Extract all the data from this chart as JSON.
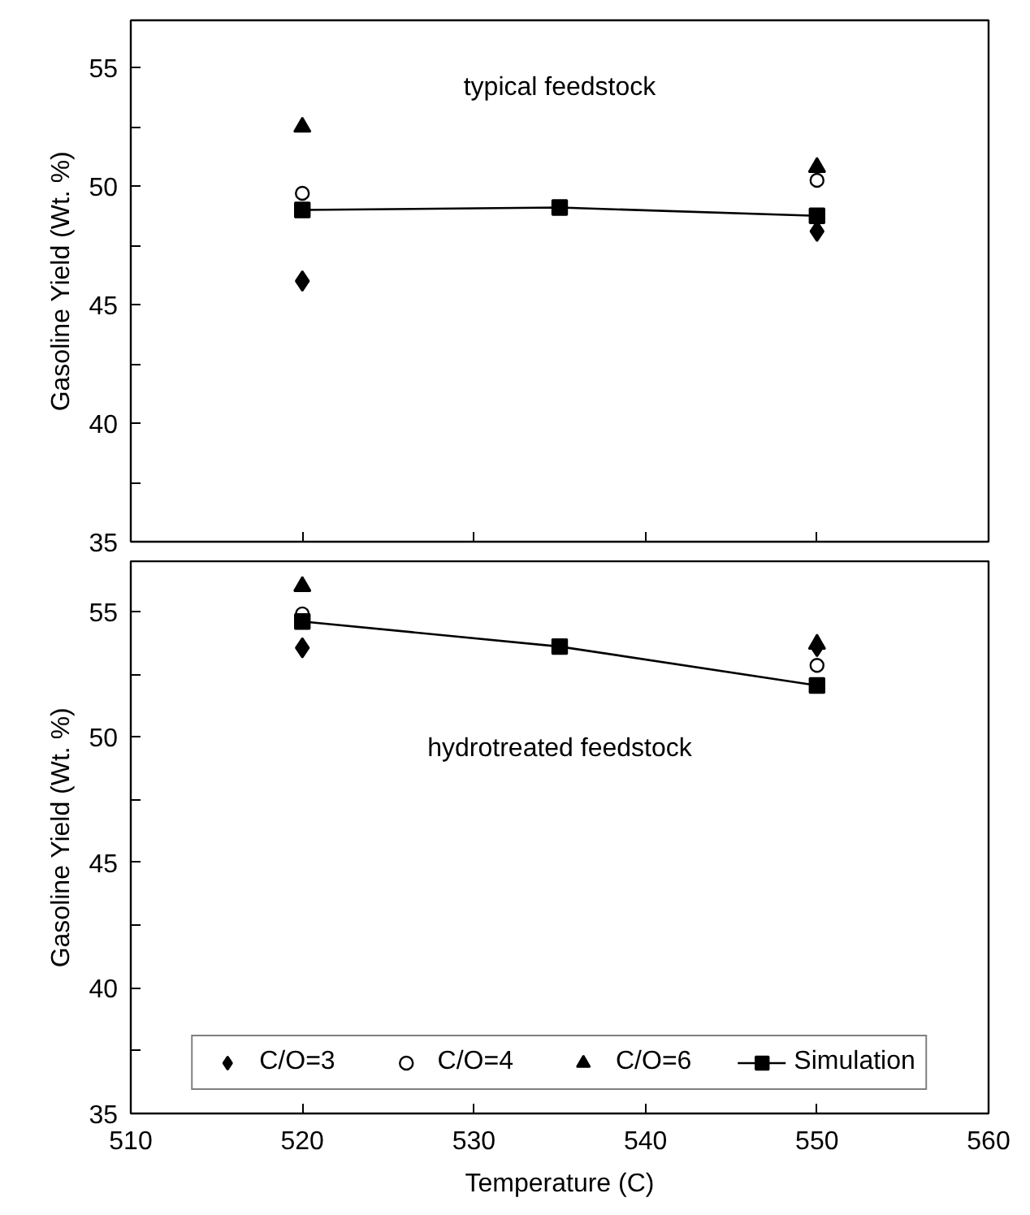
{
  "chart_data": [
    {
      "type": "scatter",
      "ylabel": "Gasoline Yield (Wt. %)",
      "annotations": [
        "typical feedstock"
      ],
      "xlim": [
        510,
        560
      ],
      "xticks": [
        510,
        520,
        530,
        540,
        550,
        560
      ],
      "ylim": [
        35,
        57
      ],
      "yticks": [
        35,
        {
          "value": 37.5,
          "label": null
        },
        40,
        {
          "value": 42.5,
          "label": null
        },
        45,
        {
          "value": 47.5,
          "label": null
        },
        50,
        {
          "value": 52.5,
          "label": null
        },
        55
      ],
      "tick_labels": "y",
      "grid": false,
      "legend": false,
      "series": [
        {
          "marker": "diamond",
          "color": "#000000",
          "x": [
            520,
            550
          ],
          "values": [
            46.0,
            48.1
          ]
        },
        {
          "marker": "circle",
          "color": "#000000",
          "x": [
            520,
            550
          ],
          "values": [
            49.7,
            50.25
          ]
        },
        {
          "marker": "triangle",
          "color": "#000000",
          "x": [
            520,
            550
          ],
          "values": [
            52.5,
            50.8
          ]
        },
        {
          "type": "line",
          "marker": "square",
          "color": "#000000",
          "x": [
            520,
            535,
            550
          ],
          "values": [
            49.0,
            49.1,
            48.75
          ]
        }
      ]
    },
    {
      "type": "scatter",
      "xlabel": "Temperature (C)",
      "ylabel": "Gasoline Yield (Wt. %)",
      "annotations": [
        "hydrotreated feedstock"
      ],
      "xlim": [
        510,
        560
      ],
      "xticks": [
        510,
        520,
        530,
        540,
        550,
        560
      ],
      "ylim": [
        35,
        57
      ],
      "yticks": [
        35,
        {
          "value": 37.5,
          "label": null
        },
        40,
        {
          "value": 42.5,
          "label": null
        },
        45,
        {
          "value": 47.5,
          "label": null
        },
        50,
        {
          "value": 52.5,
          "label": null
        },
        55
      ],
      "grid": false,
      "legend": "bottom",
      "series": [
        {
          "name": "C/O=3",
          "marker": "diamond",
          "color": "#000000",
          "x": [
            520,
            550
          ],
          "values": [
            53.55,
            53.6
          ]
        },
        {
          "name": "C/O=4",
          "marker": "circle",
          "color": "#000000",
          "x": [
            520,
            550
          ],
          "values": [
            54.9,
            52.85
          ]
        },
        {
          "name": "C/O=6",
          "marker": "triangle",
          "color": "#000000",
          "x": [
            520,
            550
          ],
          "values": [
            56.0,
            53.7
          ]
        },
        {
          "name": "Simulation",
          "type": "line",
          "marker": "square",
          "color": "#000000",
          "x": [
            520,
            535,
            550
          ],
          "values": [
            54.6,
            53.6,
            52.05
          ]
        }
      ]
    }
  ]
}
